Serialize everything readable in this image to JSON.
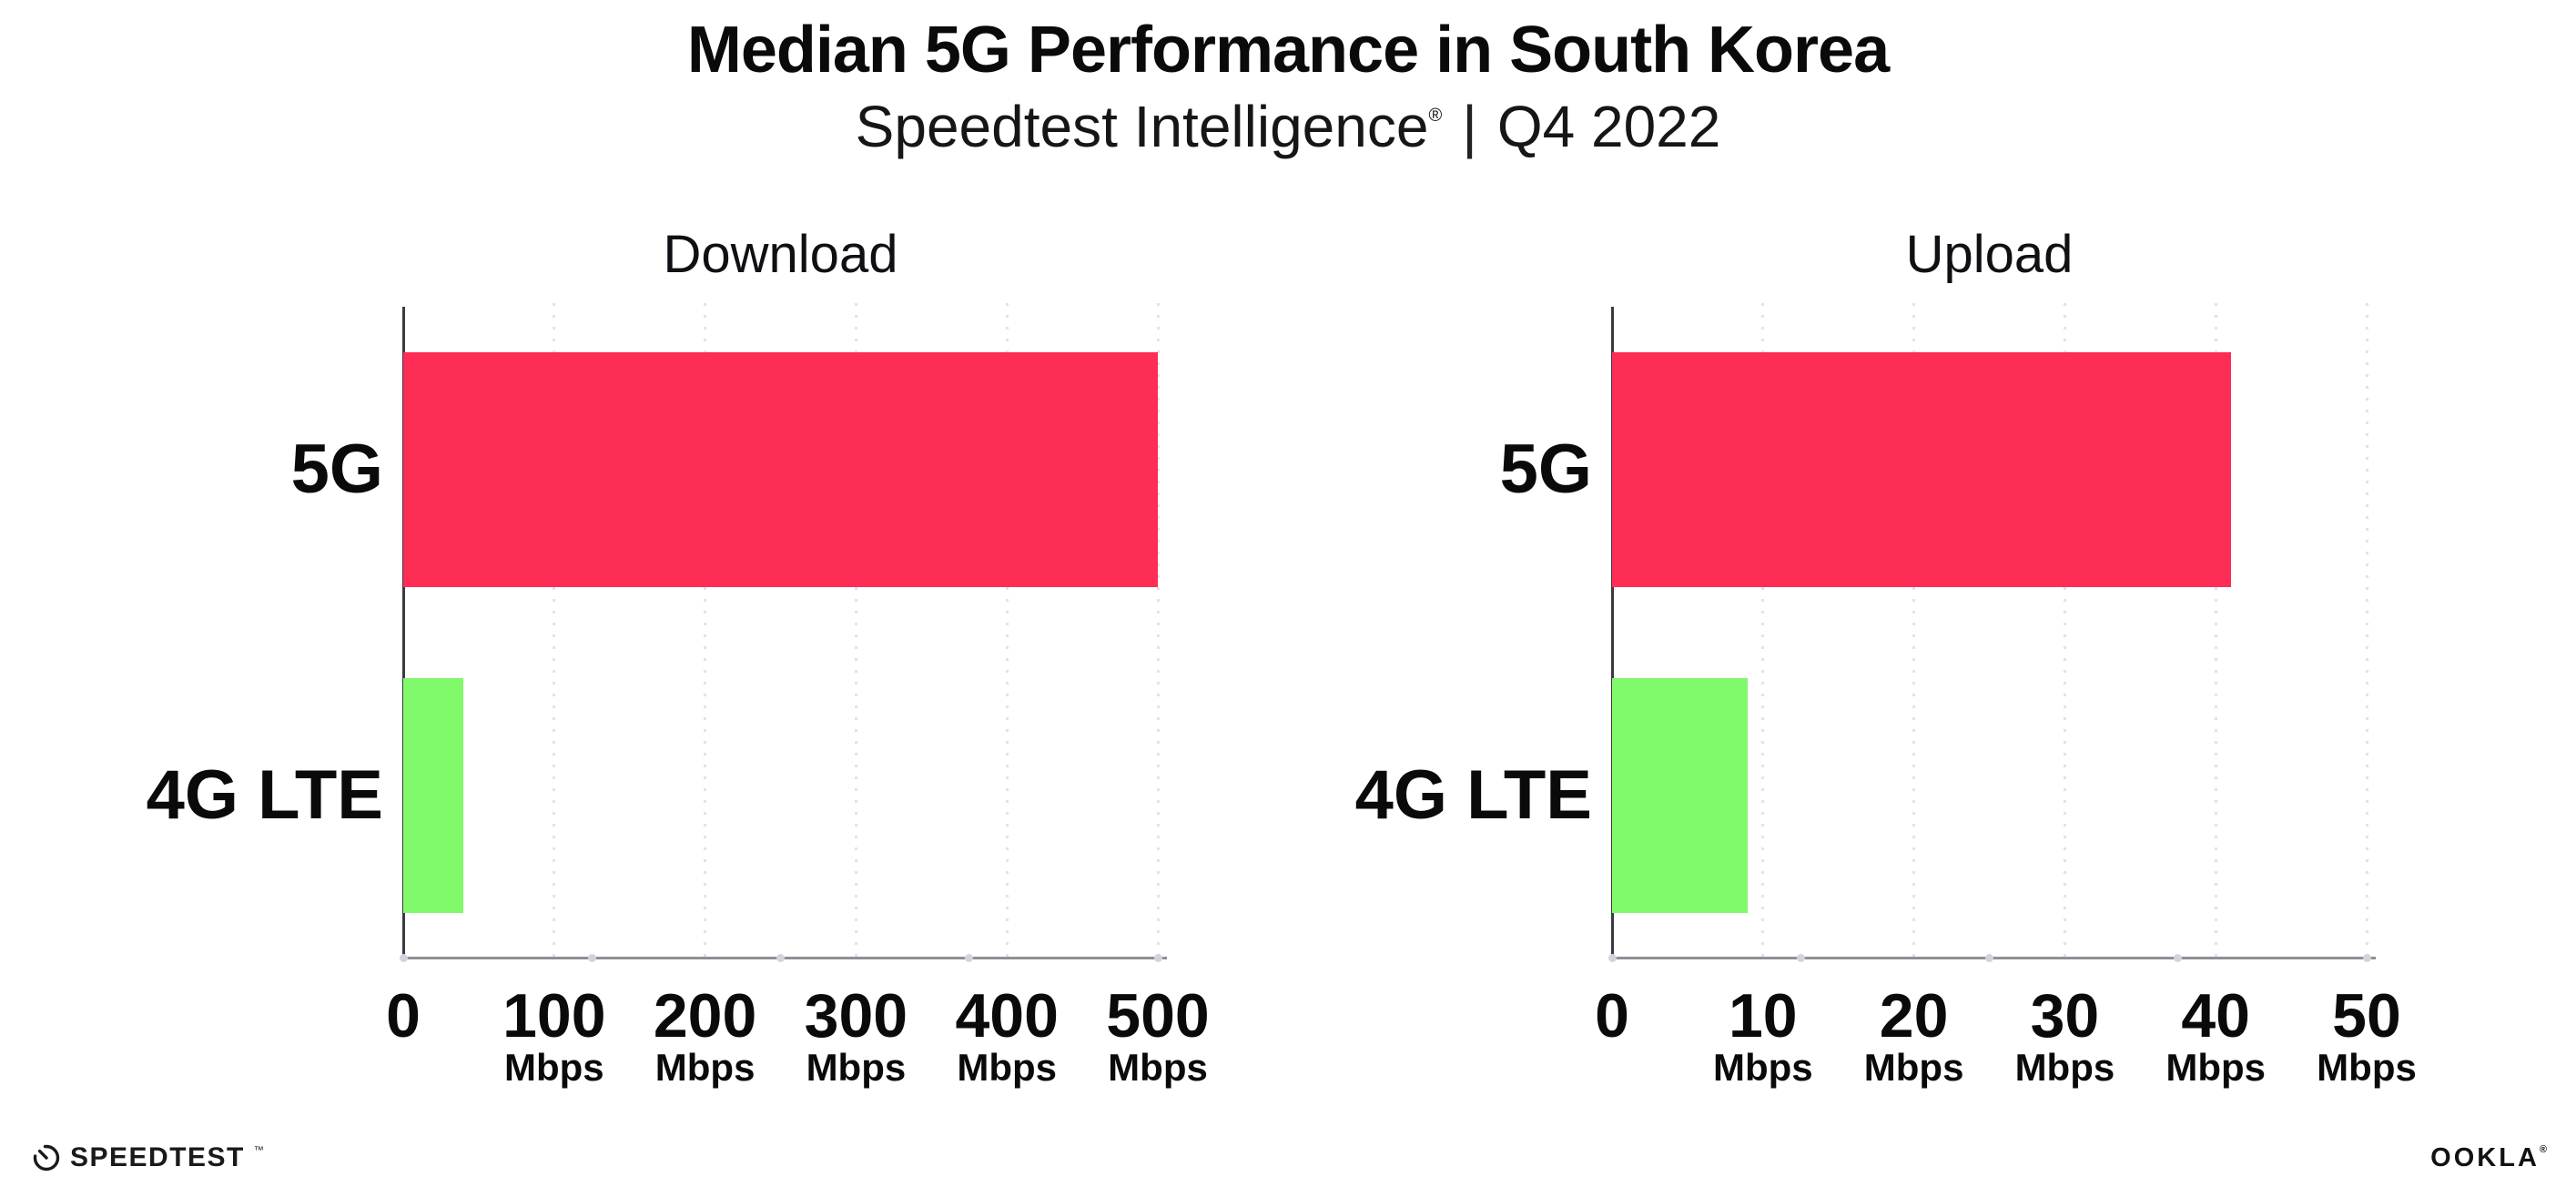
{
  "title": "Median 5G Performance in South Korea",
  "subtitle": {
    "product": "Speedtest Intelligence",
    "reg": "®",
    "separator": "|",
    "period": "Q4 2022"
  },
  "footer": {
    "speedtest_label": "SPEEDTEST",
    "speedtest_tm": "™",
    "ookla_label": "OOKLA",
    "ookla_reg": "®"
  },
  "colors": {
    "bar_5g": "#FD2D55",
    "bar_4g_lte": "#80F96A",
    "gridline": "#e2e2ec",
    "y_axis": "#3a3a42",
    "x_axis": "#8f8f96",
    "axis_dot": "#d3d3de",
    "text": "#0a0a0a"
  },
  "chart_data": [
    {
      "type": "bar",
      "orientation": "horizontal",
      "title": "Download",
      "categories": [
        "5G",
        "4G LTE"
      ],
      "values": [
        500,
        40
      ],
      "unit": "Mbps",
      "xlim": [
        0,
        500
      ],
      "xticks": [
        0,
        100,
        200,
        300,
        400,
        500
      ],
      "xtick_labels": [
        "0",
        "100",
        "200",
        "300",
        "400",
        "500"
      ],
      "xtick_unit_label": "Mbps",
      "grid": "dotted-vertical",
      "legend": "none",
      "bar_colors": [
        "#FD2D55",
        "#80F96A"
      ]
    },
    {
      "type": "bar",
      "orientation": "horizontal",
      "title": "Upload",
      "categories": [
        "5G",
        "4G LTE"
      ],
      "values": [
        41,
        9
      ],
      "unit": "Mbps",
      "xlim": [
        0,
        50
      ],
      "xticks": [
        0,
        10,
        20,
        30,
        40,
        50
      ],
      "xtick_labels": [
        "0",
        "10",
        "20",
        "30",
        "40",
        "50"
      ],
      "xtick_unit_label": "Mbps",
      "grid": "dotted-vertical",
      "legend": "none",
      "bar_colors": [
        "#FD2D55",
        "#80F96A"
      ]
    }
  ]
}
